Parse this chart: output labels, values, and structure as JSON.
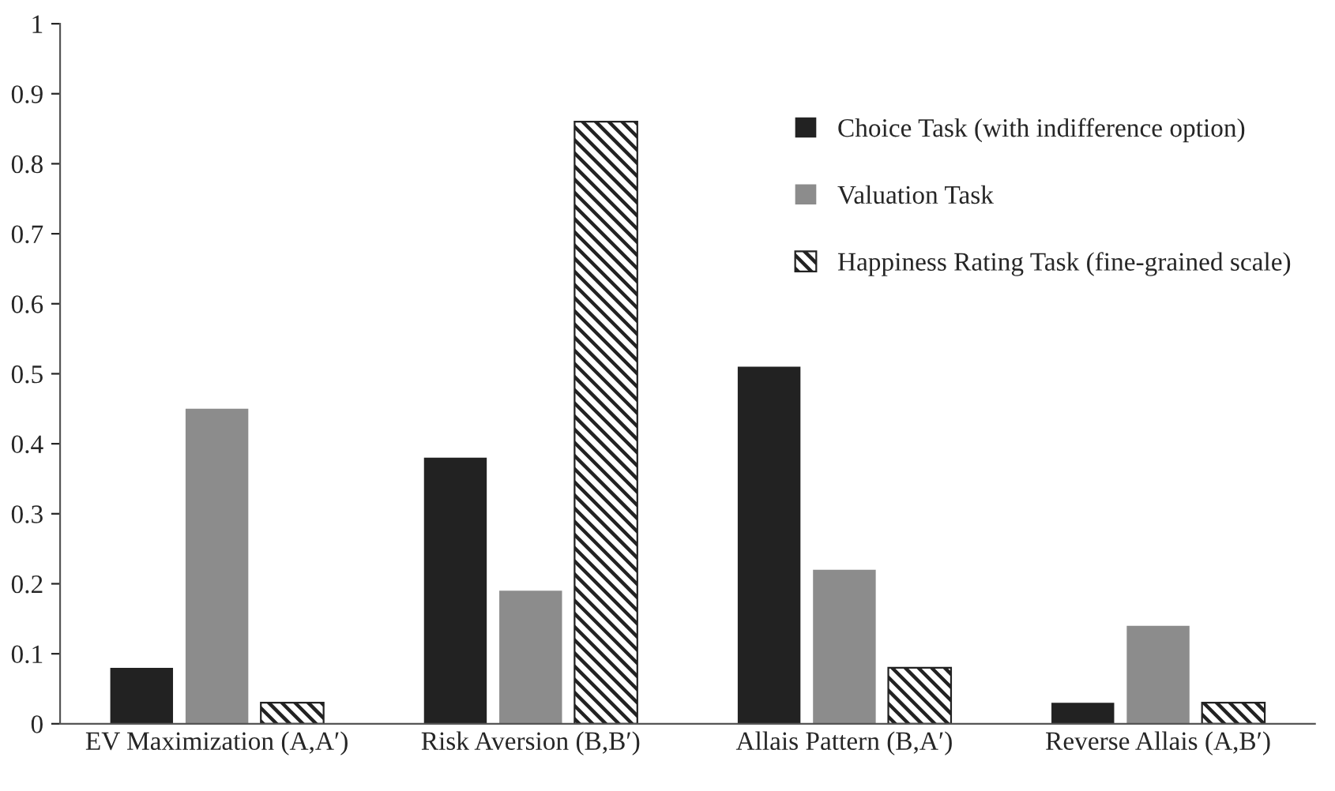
{
  "chart_data": {
    "type": "bar",
    "categories": [
      "EV Maximization (A,A′)",
      "Risk Aversion (B,B′)",
      "Allais Pattern (B,A′)",
      "Reverse Allais (A,B′)"
    ],
    "series": [
      {
        "name": "Choice Task (with indifference option)",
        "color": "#222222",
        "values": [
          0.08,
          0.38,
          0.51,
          0.03
        ]
      },
      {
        "name": "Valuation Task",
        "color": "#8c8c8c",
        "values": [
          0.45,
          0.19,
          0.22,
          0.14
        ]
      },
      {
        "name": "Happiness Rating Task (fine-grained scale)",
        "color": "#222222",
        "values": [
          0.03,
          0.86,
          0.08,
          0.03
        ]
      }
    ],
    "ylim": [
      0,
      1
    ],
    "yticks": [
      0,
      0.1,
      0.2,
      0.3,
      0.4,
      0.5,
      0.6,
      0.7,
      0.8,
      0.9,
      1
    ],
    "grid": false,
    "legend": "top right"
  }
}
